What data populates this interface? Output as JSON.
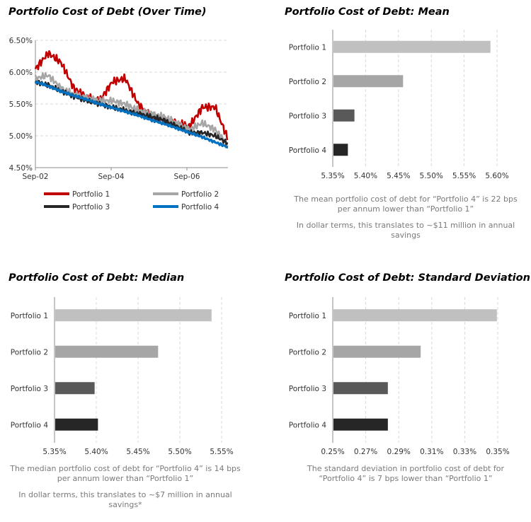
{
  "chart_data": [
    {
      "type": "line",
      "title": "Portfolio Cost of Debt (Over Time)",
      "xlabel": "",
      "ylabel": "",
      "ylim": [
        4.5,
        6.5
      ],
      "yticks": [
        "4.50%",
        "5.00%",
        "5.50%",
        "6.00%",
        "6.50%"
      ],
      "xticks": [
        "Sep-02",
        "Sep-04",
        "Sep-06"
      ],
      "x": [
        "Sep-02",
        "Jan-03",
        "May-03",
        "Sep-03",
        "Jan-04",
        "May-04",
        "Sep-04",
        "Jan-05",
        "May-05",
        "Sep-05",
        "Jan-06",
        "May-06",
        "Sep-06",
        "Jan-07",
        "May-07",
        "Aug-07"
      ],
      "legend": "bottom",
      "series": [
        {
          "name": "Portfolio 1",
          "color": "#c00000",
          "values": [
            6.05,
            6.3,
            6.15,
            5.75,
            5.6,
            5.55,
            5.85,
            5.9,
            5.5,
            5.3,
            5.25,
            5.2,
            5.15,
            5.45,
            5.45,
            4.95
          ]
        },
        {
          "name": "Portfolio 2",
          "color": "#a6a6a6",
          "values": [
            5.9,
            5.95,
            5.75,
            5.65,
            5.6,
            5.55,
            5.55,
            5.5,
            5.4,
            5.35,
            5.3,
            5.2,
            5.1,
            5.2,
            5.1,
            4.85
          ]
        },
        {
          "name": "Portfolio 3",
          "color": "#262626",
          "values": [
            5.85,
            5.8,
            5.7,
            5.62,
            5.55,
            5.5,
            5.45,
            5.4,
            5.35,
            5.3,
            5.25,
            5.15,
            5.05,
            5.05,
            5.0,
            4.88
          ]
        },
        {
          "name": "Portfolio 4",
          "color": "#0070c0",
          "values": [
            5.85,
            5.78,
            5.7,
            5.63,
            5.57,
            5.5,
            5.44,
            5.38,
            5.32,
            5.25,
            5.19,
            5.12,
            5.05,
            4.98,
            4.9,
            4.82
          ]
        }
      ]
    },
    {
      "type": "bar",
      "title": "Portfolio Cost of Debt: Mean",
      "categories": [
        "Portfolio 1",
        "Portfolio 2",
        "Portfolio 3",
        "Portfolio 4"
      ],
      "values": [
        5.59,
        5.457,
        5.383,
        5.373
      ],
      "colors": [
        "#c0c0c0",
        "#a6a6a6",
        "#595959",
        "#262626"
      ],
      "xlim": [
        5.35,
        5.6
      ],
      "xticks": [
        "5.35%",
        "5.40%",
        "5.45%",
        "5.50%",
        "5.55%",
        "5.60%"
      ]
    },
    {
      "type": "bar",
      "title": "Portfolio Cost of Debt: Median",
      "categories": [
        "Portfolio 1",
        "Portfolio 2",
        "Portfolio 3",
        "Portfolio 4"
      ],
      "values": [
        5.538,
        5.474,
        5.398,
        5.402
      ],
      "colors": [
        "#c0c0c0",
        "#a6a6a6",
        "#595959",
        "#262626"
      ],
      "xlim": [
        5.35,
        5.55
      ],
      "xticks": [
        "5.35%",
        "5.40%",
        "5.45%",
        "5.50%",
        "5.55%"
      ]
    },
    {
      "type": "bar",
      "title": "Portfolio Cost of Debt: Standard Deviation",
      "categories": [
        "Portfolio 1",
        "Portfolio 2",
        "Portfolio 3",
        "Portfolio 4"
      ],
      "values": [
        0.3495,
        0.3033,
        0.2834,
        0.2834
      ],
      "colors": [
        "#c0c0c0",
        "#a6a6a6",
        "#595959",
        "#262626"
      ],
      "xlim": [
        0.25,
        0.35
      ],
      "xticks": [
        "0.25%",
        "0.27%",
        "0.29%",
        "0.31%",
        "0.33%",
        "0.35%"
      ]
    }
  ],
  "notes": {
    "mean": [
      "The mean portfolio cost of debt for “Portfolio 4” is 22 bps per annum lower than “Portfolio 1”",
      "In dollar terms, this translates to ~$11 million in annual savings"
    ],
    "median": [
      "The median portfolio cost of debt for “Portfolio 4” is 14 bps per annum lower than “Portfolio 1”",
      "In dollar terms, this translates to ~$7 million in annual savings*"
    ],
    "stdev": [
      "The standard deviation in portfolio cost of debt for “Portfolio 4” is 7 bps lower than “Portfolio 1”"
    ]
  }
}
